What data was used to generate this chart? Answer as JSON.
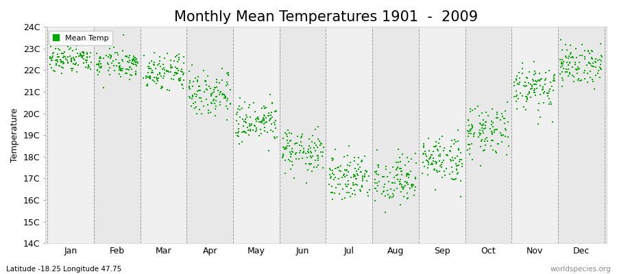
{
  "title": "Monthly Mean Temperatures 1901  -  2009",
  "ylabel": "Temperature",
  "xlabel_labels": [
    "Jan",
    "Feb",
    "Mar",
    "Apr",
    "May",
    "Jun",
    "Jul",
    "Aug",
    "Sep",
    "Oct",
    "Nov",
    "Dec"
  ],
  "subtitle": "Latitude -18.25 Longitude 47.75",
  "watermark": "worldspecies.org",
  "ylim": [
    14,
    24
  ],
  "ytick_labels": [
    "14C",
    "15C",
    "16C",
    "17C",
    "18C",
    "19C",
    "20C",
    "21C",
    "22C",
    "23C",
    "24C"
  ],
  "ytick_values": [
    14,
    15,
    16,
    17,
    18,
    19,
    20,
    21,
    22,
    23,
    24
  ],
  "dot_color": "#00aa00",
  "dot_size": 3,
  "bg_color": "#e8e8e8",
  "alt_band_color": "#f0f0f0",
  "title_fontsize": 15,
  "axis_label_fontsize": 9,
  "legend_label": "Mean Temp",
  "mean_temps": [
    22.5,
    22.3,
    21.9,
    21.0,
    19.5,
    18.2,
    17.1,
    16.9,
    17.8,
    19.2,
    21.2,
    22.3
  ],
  "std_temps": [
    0.35,
    0.35,
    0.4,
    0.5,
    0.55,
    0.5,
    0.55,
    0.55,
    0.55,
    0.6,
    0.55,
    0.45
  ],
  "n_years": 109
}
